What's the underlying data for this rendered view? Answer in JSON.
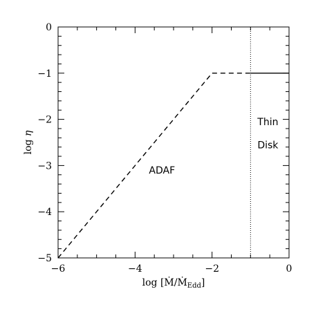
{
  "chart_data": {
    "type": "line",
    "xlabel": {
      "prefix": "log [Ṁ/Ṁ",
      "subscript": "Edd",
      "suffix": "]"
    },
    "ylabel": {
      "prefix": "log ",
      "symbol": "η"
    },
    "xlim": [
      -6,
      0
    ],
    "ylim": [
      -5,
      0
    ],
    "x_ticks": [
      -6,
      -4,
      -2,
      0
    ],
    "x_tick_labels": [
      "−6",
      "−4",
      "−2",
      "0"
    ],
    "y_ticks": [
      0,
      -1,
      -2,
      -3,
      -4,
      -5
    ],
    "y_tick_labels": [
      "0",
      "−1",
      "−2",
      "−3",
      "−4",
      "−5"
    ],
    "x_minor_step": 0.5,
    "y_minor_step": 0.2,
    "grid": false,
    "series": [
      {
        "style": "dashed",
        "color": "#000000",
        "x": [
          -6,
          -2,
          -1
        ],
        "y": [
          -5,
          -1,
          -1
        ]
      },
      {
        "style": "solid",
        "color": "#000000",
        "x": [
          -1,
          0
        ],
        "y": [
          -1,
          -1
        ]
      }
    ],
    "vertical_lines": [
      {
        "x": -1,
        "style": "dotted",
        "color": "#000000"
      }
    ],
    "annotations": [
      {
        "text": "ADAF",
        "x": -3.3,
        "y": -3.1
      },
      {
        "text": "Thin",
        "x": -0.55,
        "y": -2.05
      },
      {
        "text": "Disk",
        "x": -0.55,
        "y": -2.55
      }
    ]
  }
}
